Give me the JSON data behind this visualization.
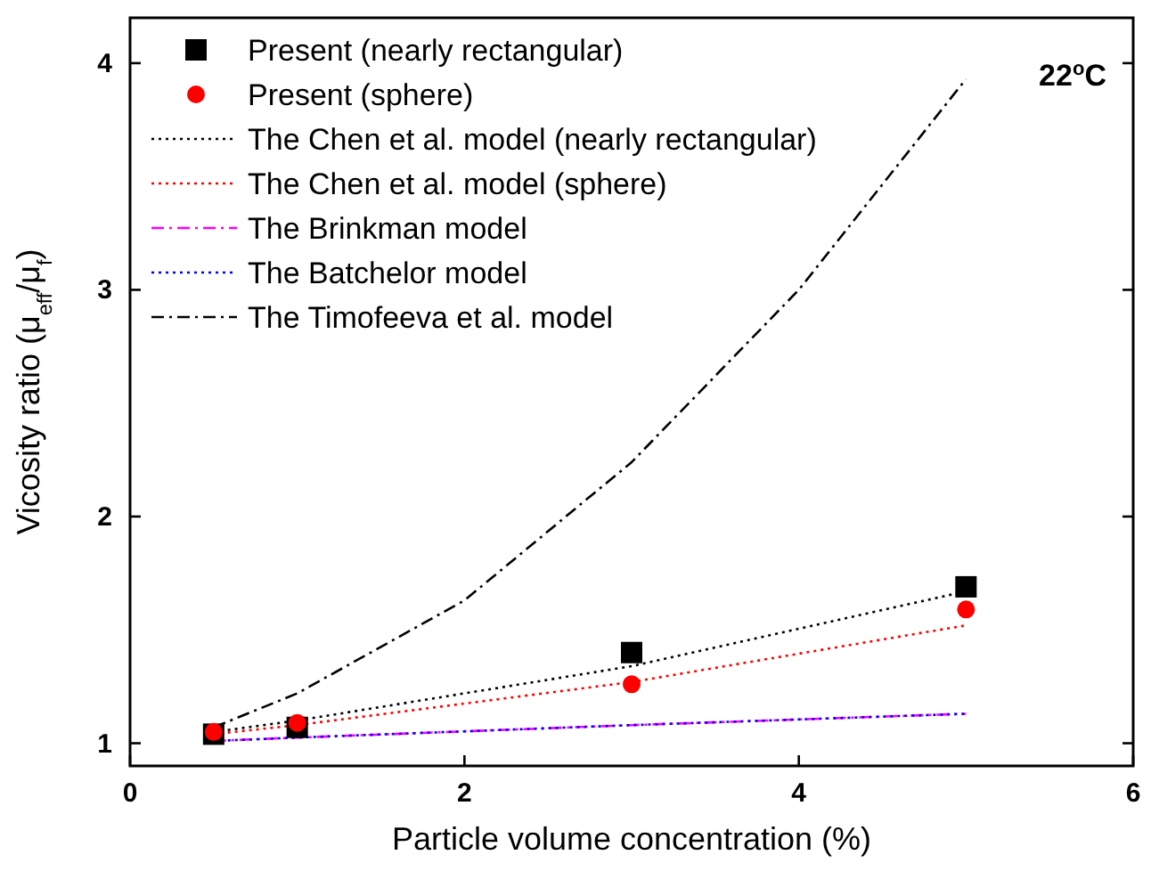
{
  "chart_data": {
    "type": "scatter",
    "xlabel": "Particle volume concentration (%)",
    "ylabel": "Vicosity ratio (μ$_{eff}$/μ$_{f}$)",
    "annotations": [
      "22$^{o}$C"
    ],
    "xlim": [
      0,
      6
    ],
    "xticks": [
      0,
      2,
      4,
      6
    ],
    "ylim": [
      0.9,
      4.2
    ],
    "yticks": [
      1,
      2,
      3,
      4
    ],
    "legend": "top left",
    "grid": false,
    "series": [
      {
        "name": "Present (nearly rectangular)",
        "marker": "square",
        "color": "#000000",
        "x": [
          0.5,
          1,
          3,
          5
        ],
        "values": [
          1.04,
          1.07,
          1.4,
          1.69
        ]
      },
      {
        "name": "Present (sphere)",
        "marker": "circle",
        "color": "#ff0000",
        "x": [
          0.5,
          1,
          3,
          5
        ],
        "values": [
          1.05,
          1.09,
          1.26,
          1.59
        ]
      },
      {
        "name": "The Chen et al. model (nearly rectangular)",
        "type": "line",
        "line_style": "dotted",
        "color": "#000000",
        "x": [
          0.5,
          1,
          3,
          5
        ],
        "values": [
          1.05,
          1.1,
          1.34,
          1.67
        ]
      },
      {
        "name": "The Chen et al. model (sphere)",
        "type": "line",
        "line_style": "dotted",
        "color": "#ff0000",
        "x": [
          0.5,
          1,
          3,
          5
        ],
        "values": [
          1.04,
          1.08,
          1.27,
          1.52
        ]
      },
      {
        "name": "The Brinkman model",
        "type": "line",
        "line_style": "dashdot",
        "color": "#ff00ff",
        "x": [
          0.5,
          1,
          3,
          5
        ],
        "values": [
          1.01,
          1.025,
          1.08,
          1.13
        ]
      },
      {
        "name": "The Batchelor model",
        "type": "line",
        "line_style": "dotted",
        "color": "#0000ff",
        "x": [
          0.5,
          1,
          3,
          5
        ],
        "values": [
          1.01,
          1.025,
          1.08,
          1.13
        ]
      },
      {
        "name": "The Timofeeva et al. model",
        "type": "line",
        "line_style": "dashdot",
        "color": "#000000",
        "x": [
          0.5,
          1,
          2,
          3,
          4,
          5
        ],
        "values": [
          1.07,
          1.22,
          1.63,
          2.24,
          3.0,
          3.93
        ]
      }
    ]
  }
}
